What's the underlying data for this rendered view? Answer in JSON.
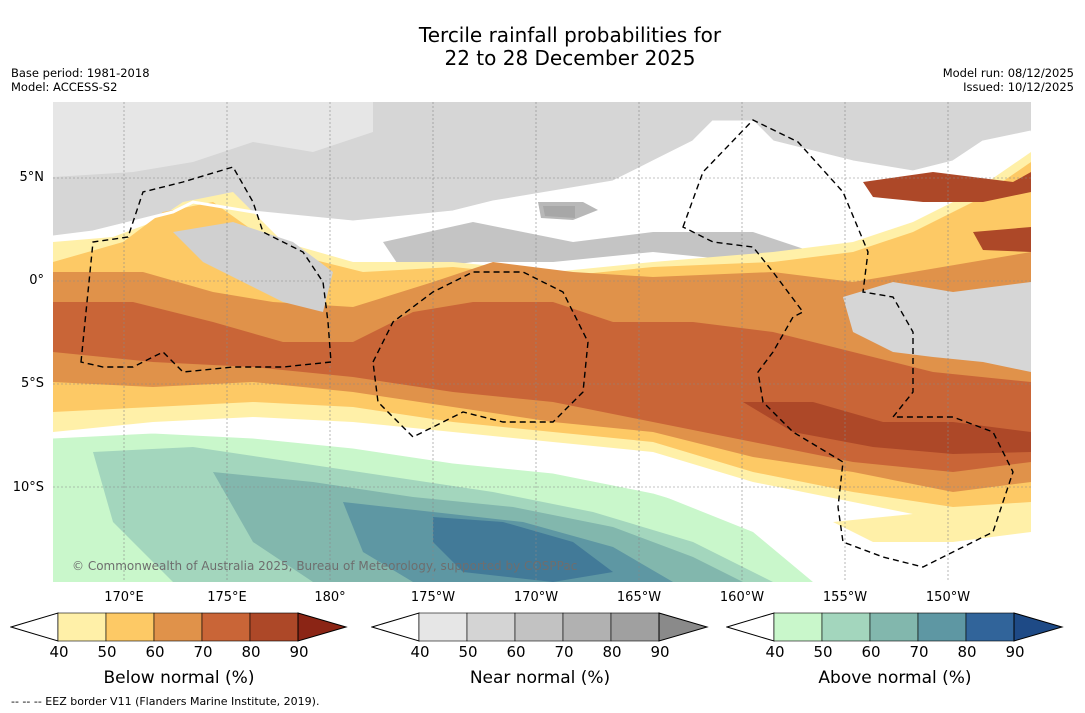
{
  "title": {
    "line1": "Tercile rainfall probabilities for",
    "line2": "22 to 28 December 2025"
  },
  "meta_left": {
    "base_period": "Base period: 1981-2018",
    "model": "Model: ACCESS-S2"
  },
  "meta_right": {
    "model_run": "Model run: 08/12/2025",
    "issued": "Issued: 10/12/2025"
  },
  "map": {
    "latitude_labels": [
      "5°N",
      "0°",
      "5°S",
      "10°S"
    ],
    "longitude_labels": [
      "170°E",
      "175°E",
      "180°",
      "175°W",
      "170°W",
      "165°W",
      "160°W",
      "155°W",
      "150°W"
    ],
    "credit": "© Commonwealth of Australia 2025, Bureau of Meteorology, supported by COSPPac"
  },
  "colorbars": [
    {
      "name": "below",
      "title": "Below normal (%)",
      "ticks": [
        "40",
        "50",
        "60",
        "70",
        "80",
        "90"
      ],
      "colors": [
        "#fff0a8",
        "#fdc965",
        "#e0924a",
        "#c96537",
        "#ad4828",
        "#8b2515"
      ]
    },
    {
      "name": "near",
      "title": "Near normal (%)",
      "ticks": [
        "40",
        "50",
        "60",
        "70",
        "80",
        "90"
      ],
      "colors": [
        "#e6e6e6",
        "#d4d4d4",
        "#c2c2c2",
        "#b1b1b1",
        "#a0a0a0",
        "#8a8a8a"
      ]
    },
    {
      "name": "above",
      "title": "Above normal (%)",
      "ticks": [
        "40",
        "50",
        "60",
        "70",
        "80",
        "90"
      ],
      "colors": [
        "#c9f7cb",
        "#a3d6bd",
        "#82b7ad",
        "#5e97a3",
        "#31649a",
        "#1e4a86"
      ]
    }
  ],
  "footnote": "--  --  -- EEZ border V11 (Flanders Marine Institute, 2019)."
}
